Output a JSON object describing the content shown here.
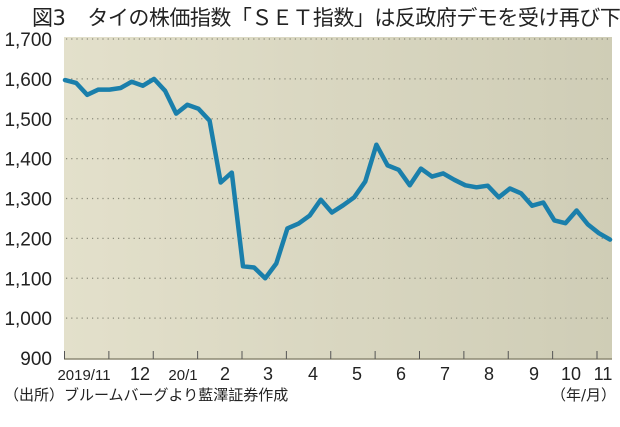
{
  "title": {
    "figure": "図3",
    "text": "タイの株価指数「ＳＥＴ指数」は反政府デモを受け再び下落"
  },
  "source": "（出所）ブルームバーグより藍澤証券作成",
  "unit": "（年/月）",
  "colors": {
    "line": "#1a7fab",
    "plot_bg_left": "#e3e0cb",
    "plot_bg_right": "#cfcdb6",
    "grid": "#8a8a7a"
  },
  "chart_data": {
    "type": "line",
    "title": "タイの株価指数「ＳＥＴ指数」は反政府デモを受け再び下落",
    "xlabel": "（年/月）",
    "ylabel": "",
    "ylim": [
      900,
      1700
    ],
    "yticks": [
      900,
      1000,
      1100,
      1200,
      1300,
      1400,
      1500,
      1600,
      1700
    ],
    "ytick_labels": [
      "900",
      "1,000",
      "1,100",
      "1,200",
      "1,300",
      "1,400",
      "1,500",
      "1,600",
      "1,700"
    ],
    "xtick_labels": [
      "2019/11",
      "12",
      "20/1",
      "2",
      "3",
      "4",
      "5",
      "6",
      "7",
      "8",
      "9",
      "10",
      "11"
    ],
    "grid": true,
    "frequency": "weekly (approx.)",
    "series": [
      {
        "name": "SET指数",
        "values": [
          1597,
          1590,
          1560,
          1573,
          1573,
          1577,
          1593,
          1583,
          1600,
          1570,
          1513,
          1535,
          1525,
          1495,
          1340,
          1365,
          1130,
          1127,
          1100,
          1137,
          1225,
          1237,
          1257,
          1297,
          1265,
          1283,
          1303,
          1343,
          1435,
          1383,
          1372,
          1333,
          1375,
          1355,
          1363,
          1347,
          1333,
          1328,
          1332,
          1303,
          1325,
          1313,
          1282,
          1290,
          1245,
          1238,
          1270,
          1235,
          1213,
          1197
        ]
      }
    ]
  }
}
